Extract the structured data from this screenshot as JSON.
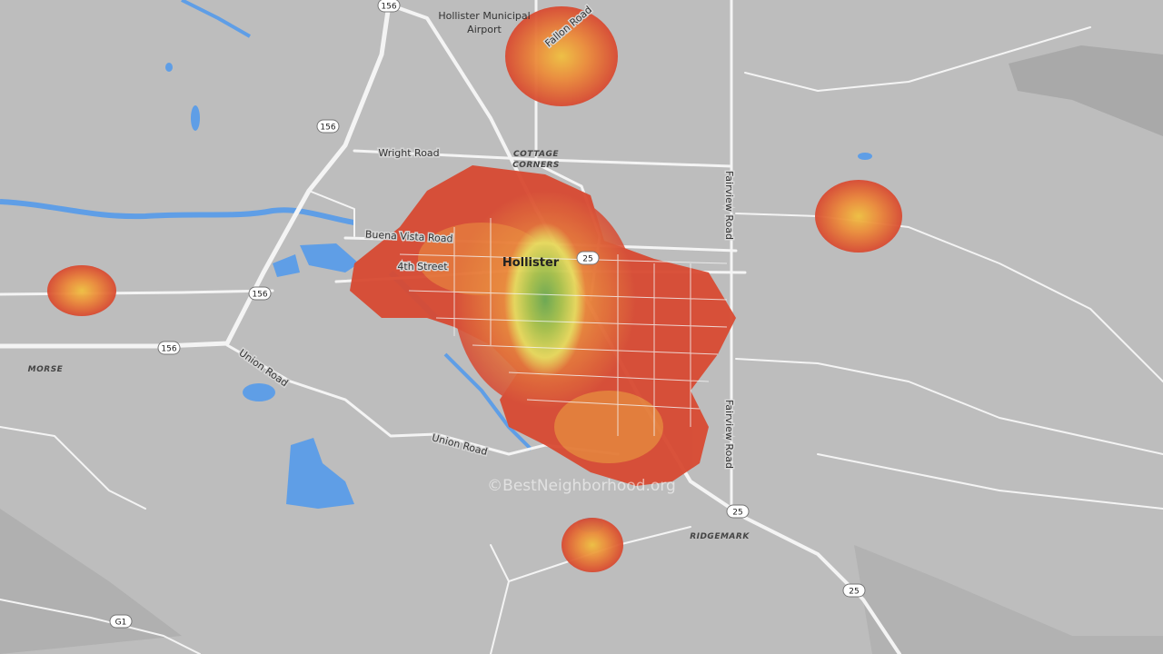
{
  "map": {
    "road_labels": [
      "Fallon Road",
      "Wright Road",
      "Buena Vista Road",
      "4th Street",
      "Union Road",
      "Union Road",
      "Fairview Road",
      "Fairview Road"
    ],
    "place_labels": [
      "Hollister Municipal",
      "Airport",
      "COTTAGE",
      "CORNERS",
      "Hollister",
      "MORSE",
      "RIDGEMARK"
    ],
    "shields": [
      "156",
      "156",
      "156",
      "156",
      "25",
      "25",
      "25",
      "G1"
    ],
    "watermark": "©BestNeighborhood.org"
  }
}
